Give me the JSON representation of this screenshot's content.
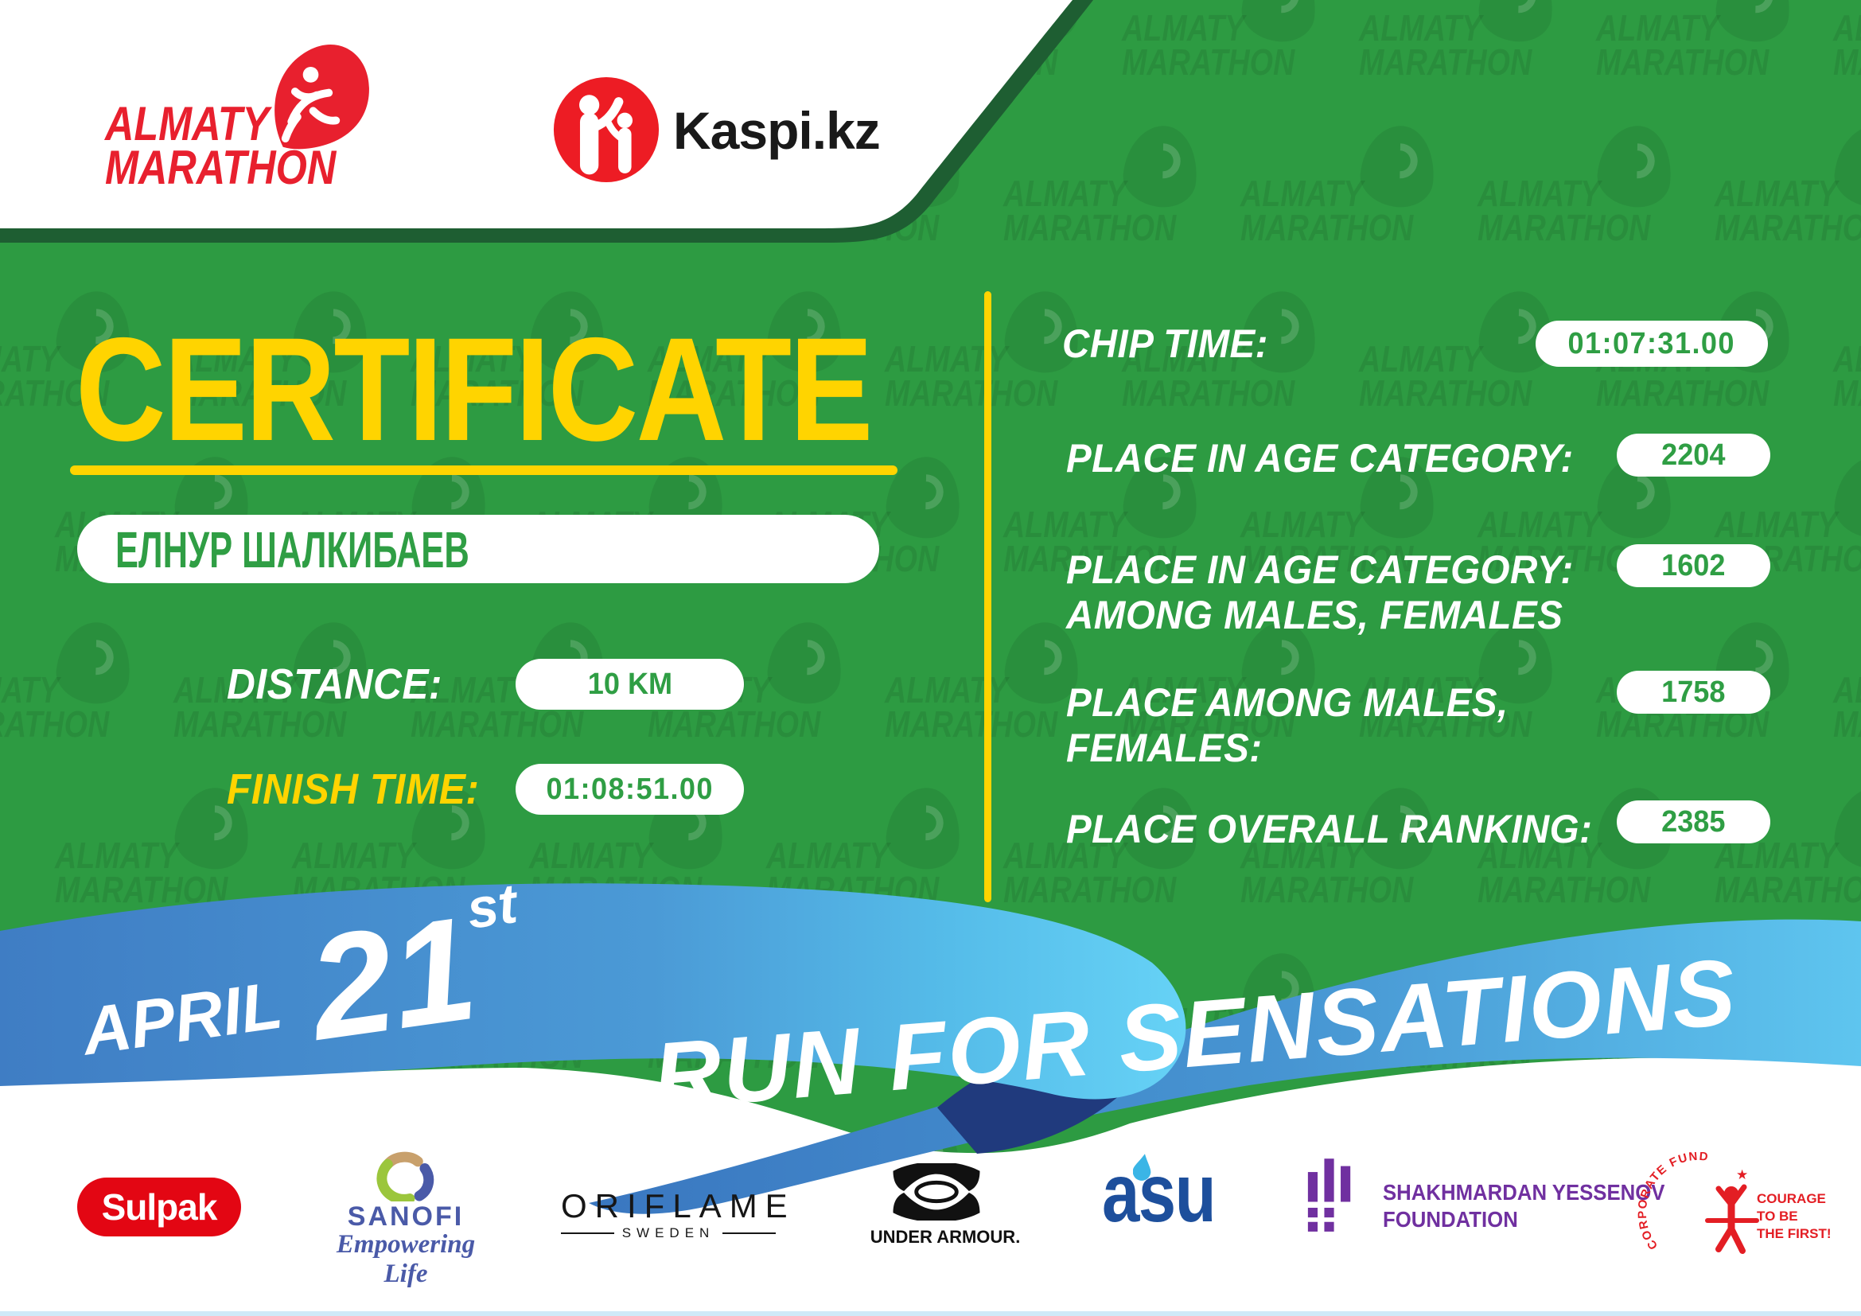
{
  "header": {
    "almaty_logo_line1": "ALMATY",
    "almaty_logo_line2": "MARATHON",
    "kaspi_label": "Kaspi.kz"
  },
  "certificate": {
    "title": "CERTIFICATE",
    "name": "ЕЛНУР ШАЛКИБАЕВ",
    "distance_label": "DISTANCE:",
    "distance_value": "10 KM",
    "finish_label": "FINISH TIME:",
    "finish_value": "01:08:51.00"
  },
  "results": {
    "rows": [
      {
        "lines": [
          "CHIP TIME:"
        ],
        "value": "01:07:31.00"
      },
      {
        "lines": [
          "PLACE IN AGE CATEGORY:"
        ],
        "value": "2204"
      },
      {
        "lines": [
          "PLACE IN AGE CATEGORY:",
          "AMONG MALES, FEMALES"
        ],
        "value": "1602"
      },
      {
        "lines": [
          "PLACE AMONG MALES,",
          "FEMALES:"
        ],
        "value": "1758"
      },
      {
        "lines": [
          "PLACE OVERALL RANKING:"
        ],
        "value": "2385"
      }
    ]
  },
  "ribbon": {
    "month": "APRIL",
    "day": "21",
    "day_suffix": "st",
    "slogan": "RUN FOR SENSATIONS"
  },
  "watermark": {
    "line1": "ALMATY",
    "line2": "MARATHON"
  },
  "sponsors": {
    "sulpak": "Sulpak",
    "sanofi_name": "SANOFI",
    "sanofi_tagline": "Empowering Life",
    "oriflame_name": "ORIFLAME",
    "oriflame_sub": "SWEDEN",
    "under_armour": "UNDER ARMOUR.",
    "asu": "asu",
    "yessenov_line1": "SHAKHMARDAN YESSENOV",
    "yessenov_line2": "FOUNDATION",
    "corporate_arc": "CORPORATE FUND",
    "corporate_line1": "COURAGE",
    "corporate_line2": "TO BE",
    "corporate_line3": "THE FIRST!"
  },
  "colors": {
    "green": "#2d9b42",
    "dark_green_shadow": "#1e5e32",
    "yellow": "#ffd400",
    "brand_red": "#e8202e",
    "kaspi_red": "#ed1c24",
    "ribbon_blue_dark": "#3a77c0",
    "ribbon_blue_light": "#66d2f6",
    "ribbon_fold_navy": "#203a7d",
    "pill_text_green": "#2f9e44",
    "sulpak_red": "#e30613",
    "sanofi_blue": "#4a5aa8",
    "asu_blue": "#1d4f9c",
    "asu_cyan": "#3ab5e6",
    "yessenov_purple": "#7030a0",
    "corporate_red": "#e31e24"
  }
}
